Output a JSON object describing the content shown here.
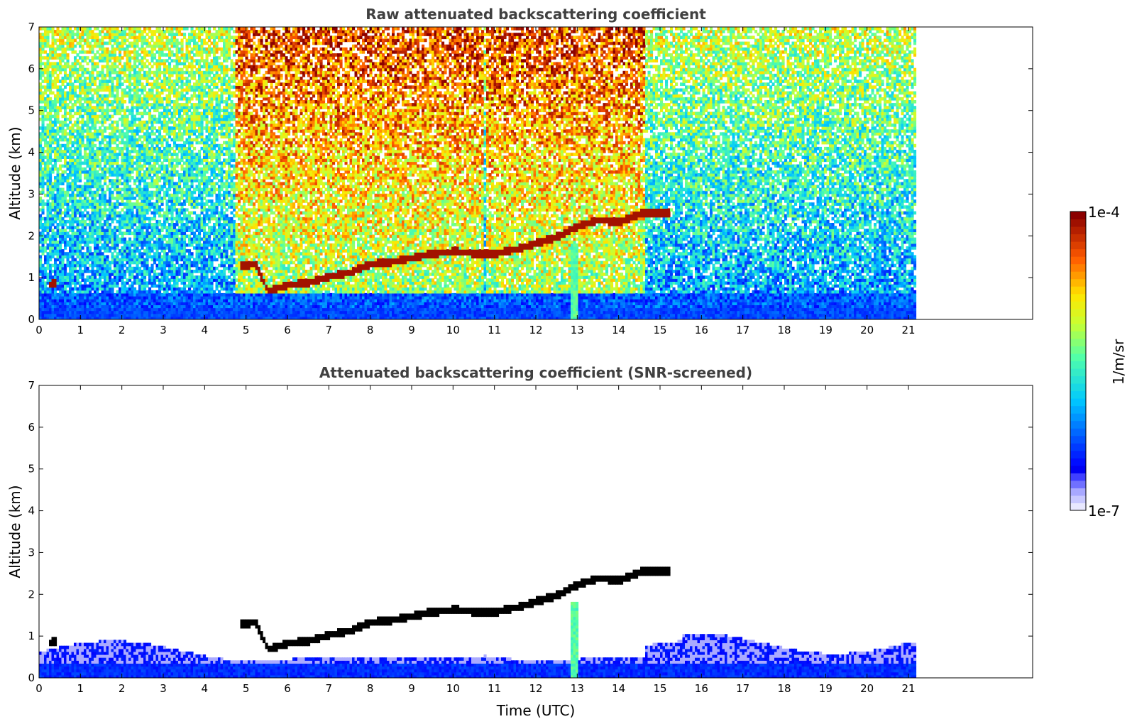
{
  "chart_data": [
    {
      "type": "heatmap",
      "title": "Raw attenuated backscattering coefficient",
      "xlabel": "",
      "ylabel": "Altitude (km)",
      "xlim": [
        0,
        24
      ],
      "ylim": [
        0,
        7
      ],
      "xticks": [
        "0",
        "1",
        "2",
        "3",
        "4",
        "5",
        "6",
        "7",
        "8",
        "9",
        "10",
        "11",
        "12",
        "13",
        "14",
        "15",
        "16",
        "17",
        "18",
        "19",
        "20",
        "21"
      ],
      "yticks": [
        "0",
        "1",
        "2",
        "3",
        "4",
        "5",
        "6",
        "7"
      ],
      "data_extent_x": [
        0,
        21.17
      ],
      "features": {
        "noisy_high_signal_periods": [
          [
            4.7,
            10.7
          ],
          [
            10.8,
            14.6
          ]
        ],
        "cloud_layer": [
          {
            "t": 0.2,
            "h": 0.8
          },
          {
            "t": 0.4,
            "h": 0.85
          },
          {
            "t": 4.8,
            "h": 1.25
          },
          {
            "t": 5.2,
            "h": 1.3
          },
          {
            "t": 5.5,
            "h": 0.65
          },
          {
            "t": 6.0,
            "h": 0.8
          },
          {
            "t": 6.5,
            "h": 0.85
          },
          {
            "t": 7.0,
            "h": 1.0
          },
          {
            "t": 7.5,
            "h": 1.1
          },
          {
            "t": 8.0,
            "h": 1.3
          },
          {
            "t": 8.5,
            "h": 1.35
          },
          {
            "t": 9.0,
            "h": 1.45
          },
          {
            "t": 9.5,
            "h": 1.55
          },
          {
            "t": 10.0,
            "h": 1.6
          },
          {
            "t": 10.5,
            "h": 1.55
          },
          {
            "t": 11.0,
            "h": 1.55
          },
          {
            "t": 11.5,
            "h": 1.65
          },
          {
            "t": 12.0,
            "h": 1.8
          },
          {
            "t": 12.5,
            "h": 1.95
          },
          {
            "t": 13.0,
            "h": 2.2
          },
          {
            "t": 13.5,
            "h": 2.35
          },
          {
            "t": 14.0,
            "h": 2.3
          },
          {
            "t": 14.5,
            "h": 2.5
          },
          {
            "t": 15.2,
            "h": 2.5
          }
        ],
        "precipitation_column_t": 12.9
      }
    },
    {
      "type": "heatmap",
      "title": "Attenuated backscattering coefficient (SNR-screened)",
      "xlabel": "Time (UTC)",
      "ylabel": "Altitude (km)",
      "xlim": [
        0,
        24
      ],
      "ylim": [
        0,
        7
      ],
      "xticks": [
        "0",
        "1",
        "2",
        "3",
        "4",
        "5",
        "6",
        "7",
        "8",
        "9",
        "10",
        "11",
        "12",
        "13",
        "14",
        "15",
        "16",
        "17",
        "18",
        "19",
        "20",
        "21"
      ],
      "yticks": [
        "0",
        "1",
        "2",
        "3",
        "4",
        "5",
        "6",
        "7"
      ],
      "data_extent_x": [
        0,
        21.17
      ]
    }
  ],
  "colorbar": {
    "label": "1/m/sr",
    "min_label": "1e-7",
    "max_label": "1e-4",
    "scale": "log",
    "colors": [
      "#e8e8ff",
      "#a0a0ff",
      "#0000ff",
      "#0066ff",
      "#00ccff",
      "#33ffcc",
      "#99ff66",
      "#ffff00",
      "#ff9900",
      "#ff2200",
      "#8b0000"
    ]
  }
}
